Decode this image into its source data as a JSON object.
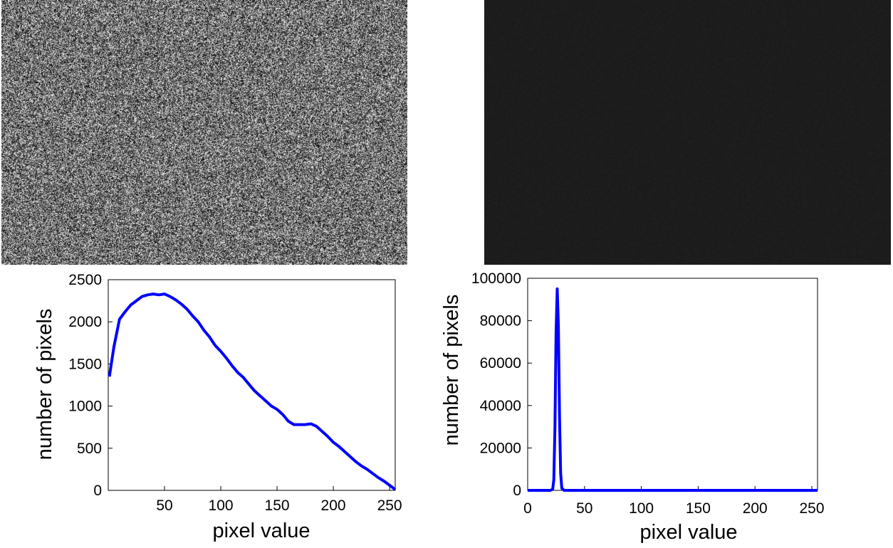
{
  "images": [
    {
      "name": "original-speckle-image",
      "content": "grayscale speckle noise pattern",
      "mean_gray": "mid-gray"
    },
    {
      "name": "processed-dark-image",
      "content": "uniformly dark gray image",
      "mean_gray": "dark"
    }
  ],
  "chart_data": [
    {
      "type": "line",
      "xlabel": "pixel value",
      "ylabel": "number of pixels",
      "xlim": [
        0,
        255
      ],
      "ylim": [
        0,
        2500
      ],
      "xticks": [
        50,
        100,
        150,
        200,
        250
      ],
      "yticks": [
        0,
        500,
        1000,
        1500,
        2000,
        2500
      ],
      "grid": false,
      "series": [
        {
          "color": "#0000ff",
          "x": [
            1,
            5,
            10,
            15,
            20,
            25,
            30,
            35,
            40,
            45,
            50,
            55,
            60,
            65,
            70,
            75,
            80,
            85,
            90,
            95,
            100,
            105,
            110,
            115,
            120,
            125,
            130,
            135,
            140,
            145,
            150,
            155,
            160,
            165,
            170,
            175,
            180,
            185,
            190,
            195,
            200,
            205,
            210,
            215,
            220,
            225,
            230,
            235,
            240,
            245,
            250,
            255
          ],
          "y": [
            1350,
            1700,
            2030,
            2120,
            2200,
            2250,
            2300,
            2320,
            2330,
            2320,
            2330,
            2300,
            2260,
            2210,
            2150,
            2070,
            2000,
            1900,
            1820,
            1720,
            1650,
            1570,
            1480,
            1400,
            1340,
            1260,
            1180,
            1120,
            1060,
            1000,
            960,
            900,
            820,
            780,
            780,
            780,
            790,
            760,
            700,
            640,
            570,
            520,
            460,
            400,
            340,
            290,
            250,
            200,
            150,
            110,
            60,
            10
          ]
        }
      ]
    },
    {
      "type": "line",
      "xlabel": "pixel value",
      "ylabel": "number of pixels",
      "xlim": [
        0,
        255
      ],
      "ylim": [
        0,
        100000
      ],
      "xticks": [
        0,
        50,
        100,
        150,
        200,
        250
      ],
      "yticks": [
        0,
        20000,
        40000,
        60000,
        80000,
        100000
      ],
      "grid": false,
      "series": [
        {
          "color": "#0000ff",
          "x": [
            0,
            10,
            20,
            22,
            23,
            24,
            25,
            26,
            27,
            28,
            29,
            30,
            32,
            35,
            50,
            100,
            150,
            200,
            255
          ],
          "y": [
            0,
            0,
            0,
            500,
            5000,
            30000,
            75000,
            95000,
            78000,
            35000,
            8000,
            1000,
            0,
            0,
            0,
            0,
            0,
            0,
            0
          ]
        }
      ]
    }
  ]
}
